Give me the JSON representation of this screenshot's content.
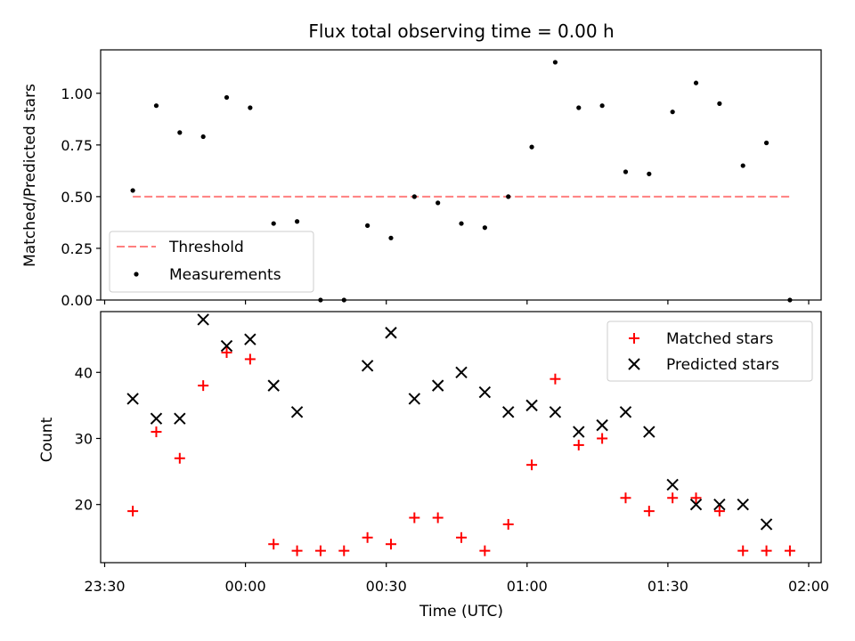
{
  "chart_data": [
    {
      "type": "scatter",
      "title": "Flux total observing time = 0.00 h",
      "ylabel": "Matched/Predicted stars",
      "xlabel": "",
      "ylim": [
        0,
        1.21
      ],
      "yticks": [
        0.0,
        0.25,
        0.5,
        0.75,
        1.0
      ],
      "ytick_labels": [
        "0.00",
        "0.25",
        "0.50",
        "0.75",
        "1.00"
      ],
      "legend": {
        "position": "lower-left",
        "entries": [
          "Threshold",
          "Measurements"
        ]
      },
      "threshold": {
        "name": "Threshold",
        "value": 0.5,
        "x_start": "23:36",
        "x_end": "01:56",
        "color": "#ff7f7f"
      },
      "series": [
        {
          "name": "Measurements",
          "marker": "dot",
          "color": "#000000",
          "x": [
            "23:36",
            "23:41",
            "23:46",
            "23:51",
            "23:56",
            "00:01",
            "00:06",
            "00:11",
            "00:16",
            "00:21",
            "00:26",
            "00:31",
            "00:36",
            "00:41",
            "00:46",
            "00:51",
            "00:56",
            "01:01",
            "01:06",
            "01:11",
            "01:16",
            "01:21",
            "01:26",
            "01:31",
            "01:36",
            "01:41",
            "01:46",
            "01:51",
            "01:56"
          ],
          "y": [
            0.53,
            0.94,
            0.81,
            0.79,
            0.98,
            0.93,
            0.37,
            0.38,
            0.0,
            0.0,
            0.36,
            0.3,
            0.5,
            0.47,
            0.37,
            0.35,
            0.5,
            0.74,
            1.15,
            0.93,
            0.94,
            0.62,
            0.61,
            0.91,
            1.05,
            0.95,
            0.65,
            0.76,
            0.0
          ]
        }
      ]
    },
    {
      "type": "scatter",
      "title": "",
      "xlabel": "Time (UTC)",
      "ylabel": "Count",
      "ylim": [
        11.2,
        49.2
      ],
      "yticks": [
        20,
        30,
        40
      ],
      "ytick_labels": [
        "20",
        "30",
        "40"
      ],
      "xticks": [
        "23:30",
        "00:00",
        "00:30",
        "01:00",
        "01:30",
        "02:00"
      ],
      "legend": {
        "position": "top-right",
        "entries": [
          "Matched stars",
          "Predicted stars"
        ]
      },
      "series": [
        {
          "name": "Matched stars",
          "marker": "plus",
          "color": "#ff0000",
          "x": [
            "23:36",
            "23:41",
            "23:46",
            "23:51",
            "23:56",
            "00:01",
            "00:06",
            "00:11",
            "00:16",
            "00:21",
            "00:26",
            "00:31",
            "00:36",
            "00:41",
            "00:46",
            "00:51",
            "00:56",
            "01:01",
            "01:06",
            "01:11",
            "01:16",
            "01:21",
            "01:26",
            "01:31",
            "01:36",
            "01:41",
            "01:46",
            "01:51",
            "01:56"
          ],
          "y": [
            19,
            31,
            27,
            38,
            43,
            42,
            14,
            13,
            13,
            13,
            15,
            14,
            18,
            18,
            15,
            13,
            17,
            26,
            39,
            29,
            30,
            21,
            19,
            21,
            21,
            19,
            13,
            13,
            13
          ]
        },
        {
          "name": "Predicted stars",
          "marker": "x",
          "color": "#000000",
          "x": [
            "23:36",
            "23:41",
            "23:46",
            "23:51",
            "23:56",
            "00:01",
            "00:06",
            "00:11",
            "00:26",
            "00:31",
            "00:36",
            "00:41",
            "00:46",
            "00:51",
            "00:56",
            "01:01",
            "01:06",
            "01:11",
            "01:16",
            "01:21",
            "01:26",
            "01:31",
            "01:36",
            "01:41",
            "01:46",
            "01:51"
          ],
          "y": [
            36,
            33,
            33,
            48,
            44,
            45,
            38,
            34,
            41,
            46,
            36,
            38,
            40,
            37,
            34,
            35,
            34,
            31,
            32,
            34,
            31,
            23,
            20,
            20,
            20,
            17
          ]
        }
      ]
    }
  ]
}
